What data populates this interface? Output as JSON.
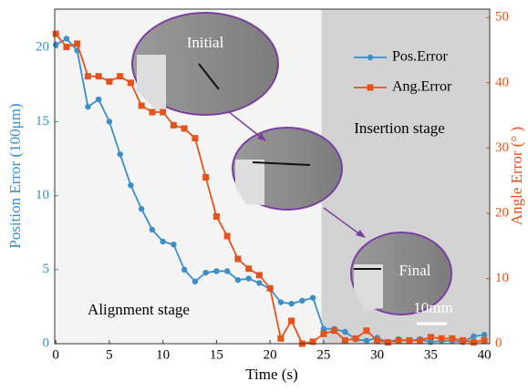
{
  "chart_data": {
    "type": "line",
    "x_label": "Time (s)",
    "y_label": "Position Error (100μm)",
    "y2_label": "Angle Error (° )",
    "x": [
      0,
      1,
      2,
      3,
      4,
      5,
      6,
      7,
      8,
      9,
      10,
      11,
      12,
      13,
      14,
      15,
      16,
      17,
      18,
      19,
      20,
      21,
      22,
      23,
      24,
      25,
      26,
      27,
      28,
      29,
      30,
      31,
      32,
      33,
      34,
      35,
      36,
      37,
      38,
      39,
      40
    ],
    "series": [
      {
        "name": "Pos.Error",
        "color": "#3a8fc9",
        "marker": "circle",
        "values": [
          20.2,
          20.6,
          19.8,
          16.0,
          16.5,
          15.0,
          12.8,
          10.7,
          9.1,
          7.7,
          6.9,
          6.7,
          5.0,
          4.2,
          4.8,
          4.9,
          4.9,
          4.3,
          4.4,
          4.1,
          3.7,
          2.8,
          2.7,
          2.9,
          3.1,
          1.0,
          1.0,
          0.8,
          0.3,
          0.2,
          0.4,
          0.1,
          0.3,
          0.2,
          0.3,
          0.1,
          0.2,
          0.2,
          0.1,
          0.5,
          0.6
        ]
      },
      {
        "name": "Ang.Error",
        "color": "#e5531c",
        "marker": "square",
        "axis": "y2",
        "values": [
          47.5,
          45.5,
          46,
          41,
          41,
          40.2,
          41,
          40,
          36.5,
          35.5,
          35.5,
          33.5,
          33,
          31.5,
          25.5,
          19.5,
          16.5,
          13,
          11.5,
          10.5,
          8.5,
          0.8,
          3.5,
          0,
          0.3,
          1.5,
          2,
          0.5,
          0.8,
          2,
          0.5,
          0.2,
          0.5,
          0.5,
          0.5,
          1,
          0.8,
          0.8,
          0.5,
          0.2,
          0.5
        ]
      }
    ],
    "xlim": [
      -0.1,
      40.5
    ],
    "xticks": [
      0,
      5,
      10,
      15,
      20,
      25,
      30,
      35,
      40
    ],
    "ylim": [
      0,
      22.6
    ],
    "yticks": [
      0,
      5,
      10,
      15,
      20
    ],
    "y2lim": [
      0,
      51.3
    ],
    "y2ticks": [
      0,
      10,
      20,
      30,
      40,
      50
    ],
    "regions": [
      {
        "label": "Alignment stage",
        "xlim": [
          -0.1,
          24.8
        ],
        "color": "#f4f4f4"
      },
      {
        "label": "Insertion stage",
        "xlim": [
          24.8,
          40.5
        ],
        "color": "#d3d3d3"
      }
    ],
    "annotations": [
      "Initial",
      "Final",
      "10mm"
    ],
    "legend": "upper right"
  }
}
